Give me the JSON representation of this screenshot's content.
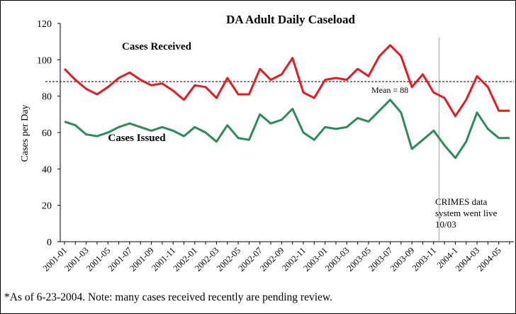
{
  "chart_data": {
    "type": "line",
    "title": "DA Adult Daily Caseload",
    "ylabel": "Cases per Day",
    "xlabel": "",
    "ylim": [
      0,
      120
    ],
    "yticks": [
      0,
      20,
      40,
      60,
      80,
      100,
      120
    ],
    "x": [
      "2001-01",
      "2001-02",
      "2001-03",
      "2001-04",
      "2001-05",
      "2001-06",
      "2001-07",
      "2001-08",
      "2001-09",
      "2001-10",
      "2001-11",
      "2001-12",
      "2002-01",
      "2002-02",
      "2002-03",
      "2002-04",
      "2002-05",
      "2002-06",
      "2002-07",
      "2002-08",
      "2002-09",
      "2002-10",
      "2002-11",
      "2002-12",
      "2003-01",
      "2003-02",
      "2003-03",
      "2003-04",
      "2003-05",
      "2003-06",
      "2003-07",
      "2003-08",
      "2003-09",
      "2003-10",
      "2003-11",
      "2003-12",
      "2004-1",
      "2004-02",
      "2004-03",
      "2004-04",
      "2004-05",
      "2004-06"
    ],
    "x_tick_labels": [
      "2001-01",
      "2001-03",
      "2001-05",
      "2001-07",
      "2001-09",
      "2001-11",
      "2002-01",
      "2002-03",
      "2002-05",
      "2002-07",
      "2002-09",
      "2002-11",
      "2003-01",
      "2003-03",
      "2003-05",
      "2003-07",
      "2003-09",
      "2003-11",
      "2004-1",
      "2004-03",
      "2004-05"
    ],
    "series": [
      {
        "name": "Cases Received",
        "color": "#e8191f",
        "values": [
          95,
          89,
          84,
          81,
          85,
          90,
          93,
          89,
          86,
          87,
          83,
          78,
          86,
          85,
          79,
          90,
          81,
          81,
          95,
          89,
          92,
          101,
          82,
          79,
          89,
          90,
          89,
          95,
          91,
          102,
          108,
          102,
          85,
          92,
          82,
          79,
          69,
          78,
          91,
          85,
          72,
          72
        ]
      },
      {
        "name": "Cases Issued",
        "color": "#2e8b57",
        "values": [
          66,
          64,
          59,
          58,
          60,
          63,
          65,
          63,
          61,
          63,
          61,
          58,
          63,
          60,
          55,
          64,
          57,
          56,
          70,
          65,
          67,
          73,
          60,
          56,
          63,
          62,
          63,
          68,
          66,
          72,
          78,
          71,
          51,
          56,
          61,
          53,
          46,
          55,
          71,
          62,
          57,
          57
        ]
      }
    ],
    "mean_line": {
      "value": 88,
      "label": "Mean = 88",
      "style": "dashed",
      "color": "#000000"
    },
    "annotation": {
      "at": "2003-11",
      "lines": [
        "CRIMES data",
        "system went live",
        "10/03"
      ]
    },
    "grid": false,
    "legend": "inline labels"
  },
  "footnote": "*As of 6-23-2004.  Note: many cases received recently are pending review."
}
